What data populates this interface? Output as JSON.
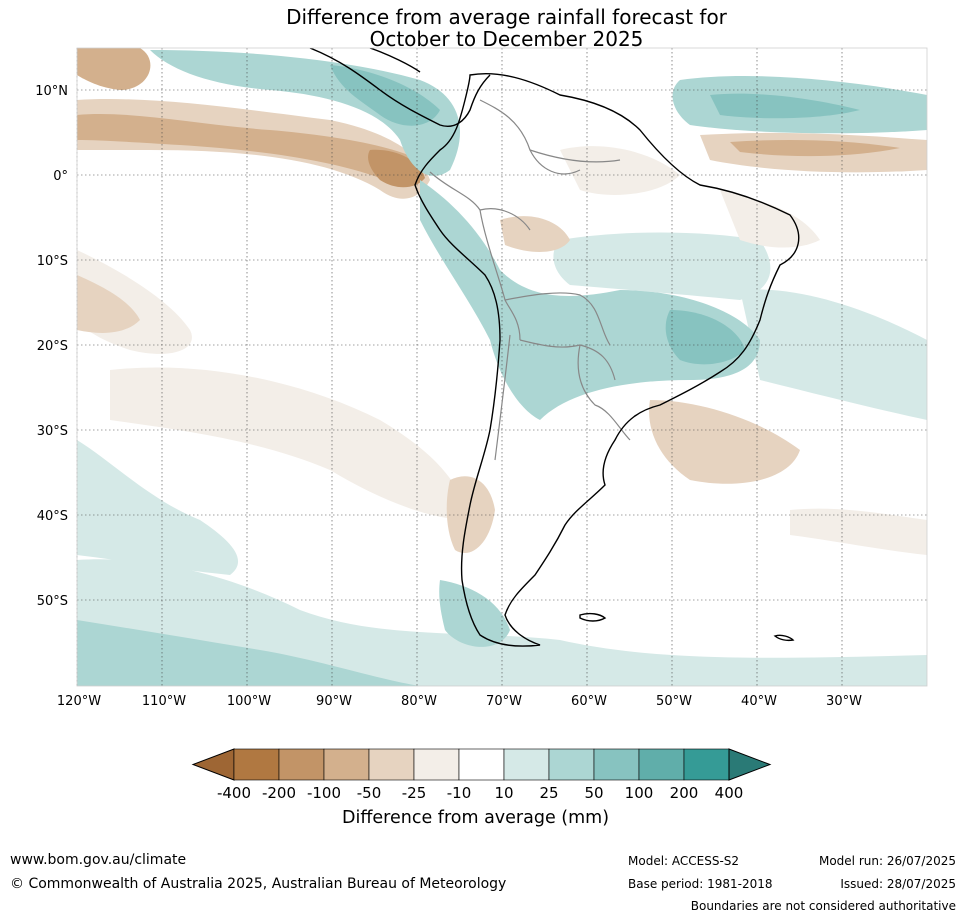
{
  "title": {
    "line1": "Difference from average rainfall forecast for",
    "line2": "October to December 2025"
  },
  "map": {
    "lon_labels": [
      "120°W",
      "110°W",
      "100°W",
      "90°W",
      "80°W",
      "70°W",
      "60°W",
      "50°W",
      "40°W",
      "30°W"
    ],
    "lat_labels": [
      "10°N",
      "0°",
      "10°S",
      "20°S",
      "30°S",
      "40°S",
      "50°S"
    ],
    "lon_range": [
      -120,
      -20
    ],
    "lat_range": [
      -60,
      15
    ],
    "gridlines": true
  },
  "colorbar": {
    "label": "Difference from average (mm)",
    "ticks": [
      "-400",
      "-200",
      "-100",
      "-50",
      "-25",
      "-10",
      "10",
      "25",
      "50",
      "100",
      "200",
      "400"
    ],
    "colors": [
      "#9e6634",
      "#b07841",
      "#c29467",
      "#d3b08d",
      "#e6d3c0",
      "#f3eee8",
      "#ffffff",
      "#d5e9e7",
      "#acd6d3",
      "#87c3c0",
      "#60aeaa",
      "#359b96",
      "#2a7a76"
    ]
  },
  "footer": {
    "url": "www.bom.gov.au/climate",
    "copyright": "© Commonwealth of Australia 2025, Australian Bureau of Meteorology",
    "model": "Model: ACCESS-S2",
    "base_period": "Base period: 1981-2018",
    "model_run": "Model run: 26/07/2025",
    "issued": "Issued: 28/07/2025",
    "disclaimer": "Boundaries are not considered authoritative"
  }
}
